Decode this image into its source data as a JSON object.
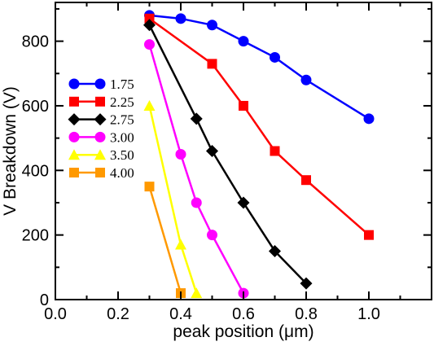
{
  "chart_data": {
    "type": "line",
    "title": "",
    "xlabel": "peak position (μm)",
    "ylabel": "V Breakdown (V)",
    "xlim": [
      0.0,
      1.2
    ],
    "ylim": [
      0,
      920
    ],
    "xticks": [
      0.0,
      0.2,
      0.4,
      0.6,
      0.8,
      1.0
    ],
    "xtick_labels": [
      "0.0",
      "0.2",
      "0.4",
      "0.6",
      "0.8",
      "1.0"
    ],
    "yticks": [
      0,
      200,
      400,
      600,
      800
    ],
    "ytick_labels": [
      "0",
      "200",
      "400",
      "600",
      "800"
    ],
    "grid": false,
    "legend_position": "left",
    "series": [
      {
        "name": "1.75",
        "color": "#0000ff",
        "marker": "circle",
        "x": [
          0.3,
          0.4,
          0.5,
          0.6,
          0.7,
          0.8,
          1.0
        ],
        "y": [
          880,
          870,
          850,
          800,
          750,
          680,
          560
        ]
      },
      {
        "name": "2.25",
        "color": "#ff0000",
        "marker": "square",
        "x": [
          0.3,
          0.5,
          0.6,
          0.7,
          0.8,
          1.0
        ],
        "y": [
          870,
          730,
          600,
          460,
          370,
          200
        ]
      },
      {
        "name": "2.75",
        "color": "#000000",
        "marker": "diamond",
        "x": [
          0.3,
          0.45,
          0.5,
          0.6,
          0.7,
          0.8
        ],
        "y": [
          850,
          560,
          460,
          300,
          150,
          50
        ]
      },
      {
        "name": "3.00",
        "color": "#ff00ff",
        "marker": "circle",
        "x": [
          0.3,
          0.4,
          0.45,
          0.5,
          0.6
        ],
        "y": [
          790,
          450,
          300,
          200,
          20
        ]
      },
      {
        "name": "3.50",
        "color": "#ffff00",
        "marker": "triangle",
        "x": [
          0.3,
          0.4,
          0.45
        ],
        "y": [
          600,
          170,
          20
        ]
      },
      {
        "name": "4.00",
        "color": "#ff9900",
        "marker": "square",
        "x": [
          0.3,
          0.4
        ],
        "y": [
          350,
          20
        ]
      }
    ]
  }
}
